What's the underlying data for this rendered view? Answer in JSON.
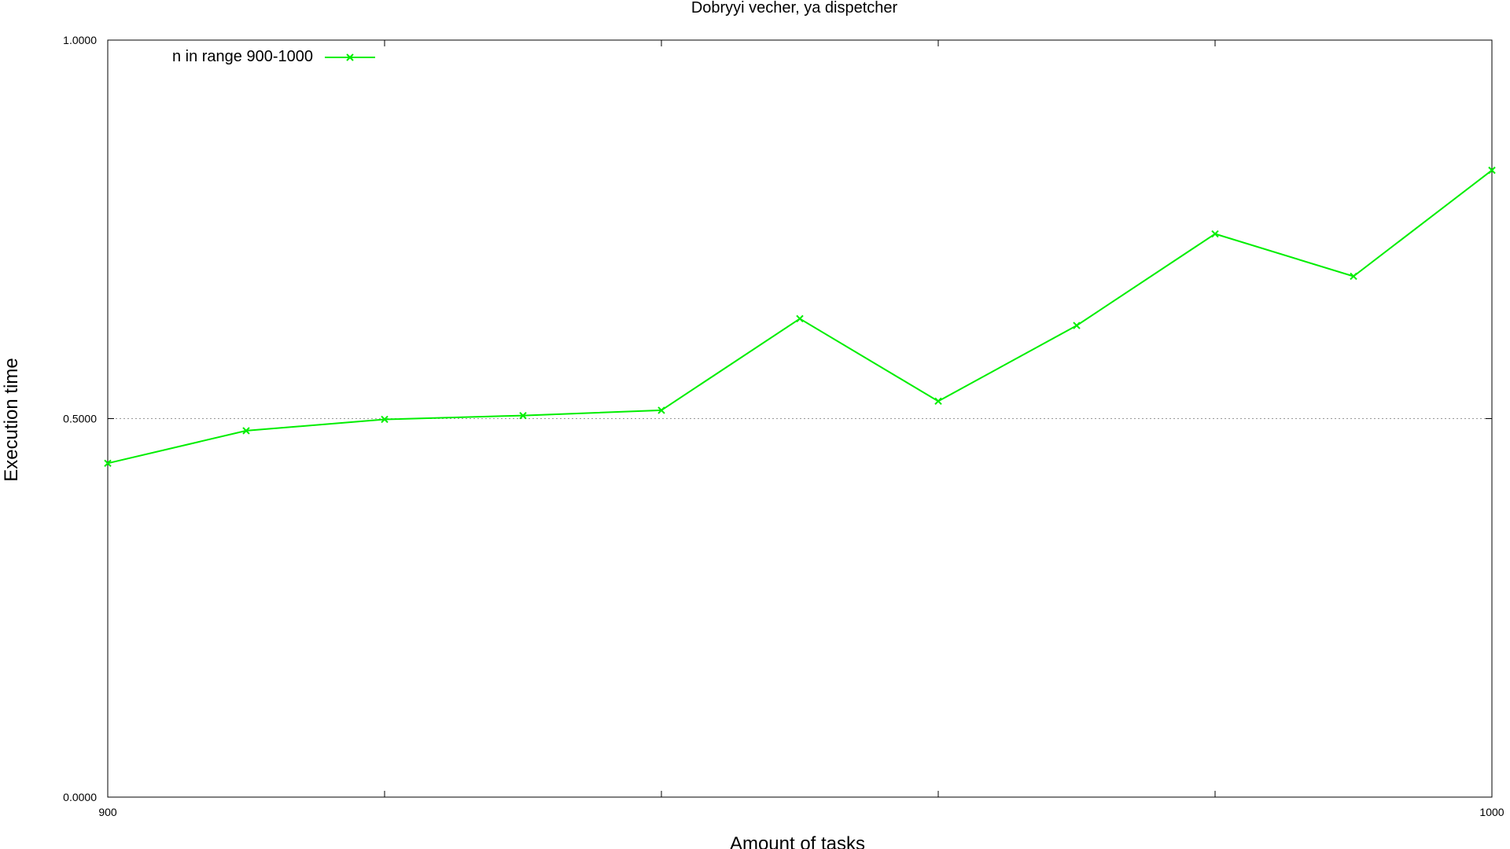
{
  "chart_data": {
    "type": "line",
    "title": "Dobryyi vecher, ya dispetcher",
    "xlabel": "Amount of tasks",
    "ylabel": "Execution time",
    "xlim": [
      900,
      1000
    ],
    "ylim": [
      0.0,
      1.0
    ],
    "x_ticks": [
      900,
      1000
    ],
    "x_tick_labels": [
      "900",
      "1000"
    ],
    "x_minor_ticks": [
      920,
      940,
      960,
      980
    ],
    "y_ticks": [
      0.0,
      0.5,
      1.0
    ],
    "y_tick_labels": [
      "0.0000",
      "0.5000",
      "1.0000"
    ],
    "y_grid": [
      0.5
    ],
    "legend_position": "top-left",
    "series": [
      {
        "name": "n in range 900-1000",
        "color": "#00ee00",
        "marker": "x",
        "x": [
          900,
          910,
          920,
          930,
          940,
          950,
          960,
          970,
          980,
          990,
          1000
        ],
        "values": [
          0.441,
          0.484,
          0.499,
          0.504,
          0.511,
          0.632,
          0.523,
          0.623,
          0.744,
          0.688,
          0.828
        ]
      }
    ]
  }
}
